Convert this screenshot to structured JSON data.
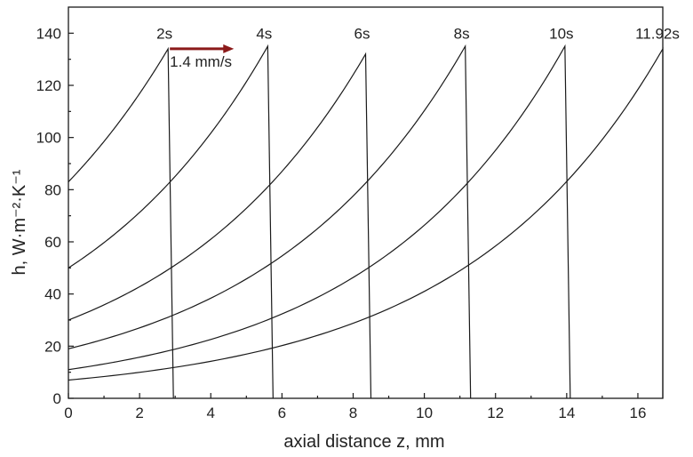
{
  "chart_data": {
    "type": "line",
    "xlabel": "axial distance z,   mm",
    "ylabel": "h,   W·m⁻²·K⁻¹",
    "xlim": [
      0,
      16.7
    ],
    "ylim": [
      0,
      150
    ],
    "xticks": [
      0,
      2,
      4,
      6,
      8,
      10,
      12,
      14,
      16
    ],
    "yticks": [
      0,
      20,
      40,
      60,
      80,
      100,
      120,
      140
    ],
    "grid": false,
    "annotation": {
      "text": "1.4 mm/s",
      "arrow_from_x": 2.85,
      "arrow_to_x": 4.65,
      "arrow_y": 134,
      "color": "#8b1a1a"
    },
    "series": [
      {
        "name": "2s",
        "z_front": 2.8,
        "z_end": 2.95,
        "h_start": 83,
        "h_peak": 134
      },
      {
        "name": "4s",
        "z_front": 5.6,
        "z_end": 5.75,
        "h_start": 50,
        "h_peak": 135
      },
      {
        "name": "6s",
        "z_front": 8.35,
        "z_end": 8.5,
        "h_start": 30,
        "h_peak": 132
      },
      {
        "name": "8s",
        "z_front": 11.15,
        "z_end": 11.3,
        "h_start": 19,
        "h_peak": 135
      },
      {
        "name": "10s",
        "z_front": 13.95,
        "z_end": 14.1,
        "h_start": 11,
        "h_peak": 135
      },
      {
        "name": "11.92s",
        "z_front": 16.7,
        "z_end": 16.7,
        "h_start": 7,
        "h_peak": 134
      }
    ]
  }
}
